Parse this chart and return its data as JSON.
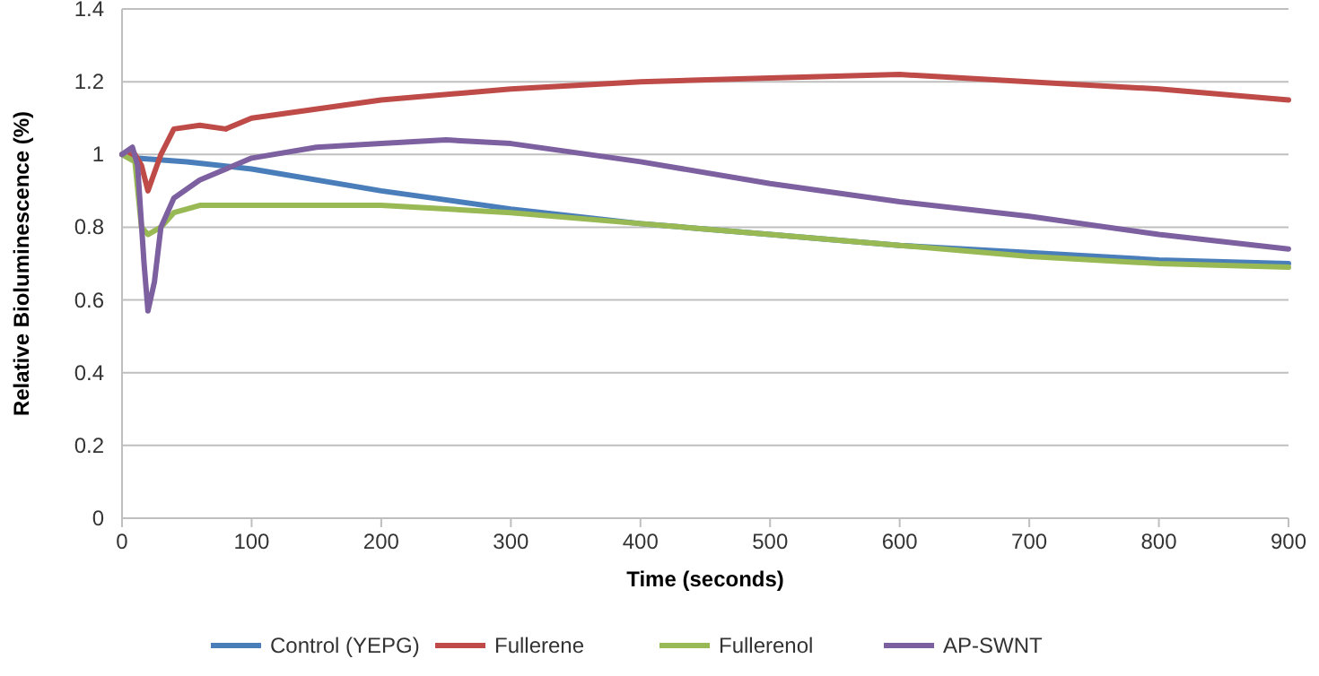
{
  "chart_data": {
    "type": "line",
    "xlabel": "Time (seconds)",
    "ylabel": "Relative Bioluminescence (%)",
    "xlim": [
      0,
      900
    ],
    "xticks": [
      0,
      100,
      200,
      300,
      400,
      500,
      600,
      700,
      800,
      900
    ],
    "ylim": [
      0,
      1.4
    ],
    "yticks": [
      0,
      0.2,
      0.4,
      0.6,
      0.8,
      1,
      1.2,
      1.4
    ],
    "grid": "y",
    "legend": "bottom",
    "marker": "none",
    "line_style": "solid",
    "series": [
      {
        "name": "Control (YEPG)",
        "color": "#4a7ebb",
        "x": [
          0,
          10,
          50,
          100,
          200,
          300,
          400,
          500,
          600,
          700,
          800,
          900
        ],
        "values": [
          1.0,
          0.99,
          0.98,
          0.96,
          0.9,
          0.85,
          0.81,
          0.78,
          0.75,
          0.73,
          0.71,
          0.7
        ]
      },
      {
        "name": "Fullerene",
        "color": "#be4b48",
        "x": [
          0,
          10,
          15,
          20,
          30,
          40,
          60,
          80,
          100,
          200,
          300,
          400,
          500,
          600,
          700,
          800,
          900
        ],
        "values": [
          1.0,
          1.0,
          0.97,
          0.9,
          1.0,
          1.07,
          1.08,
          1.07,
          1.1,
          1.15,
          1.18,
          1.2,
          1.21,
          1.22,
          1.2,
          1.18,
          1.15
        ]
      },
      {
        "name": "Fullerenol",
        "color": "#98b954",
        "x": [
          0,
          10,
          15,
          20,
          30,
          40,
          60,
          100,
          200,
          300,
          400,
          500,
          600,
          700,
          800,
          900
        ],
        "values": [
          1.0,
          0.98,
          0.8,
          0.78,
          0.8,
          0.84,
          0.86,
          0.86,
          0.86,
          0.84,
          0.81,
          0.78,
          0.75,
          0.72,
          0.7,
          0.69
        ]
      },
      {
        "name": "AP-SWNT",
        "color": "#7d60a0",
        "x": [
          0,
          8,
          12,
          17,
          20,
          25,
          30,
          40,
          60,
          100,
          150,
          200,
          250,
          300,
          400,
          500,
          600,
          700,
          800,
          900
        ],
        "values": [
          1.0,
          1.02,
          0.97,
          0.7,
          0.57,
          0.65,
          0.8,
          0.88,
          0.93,
          0.99,
          1.02,
          1.03,
          1.04,
          1.03,
          0.98,
          0.92,
          0.87,
          0.83,
          0.78,
          0.74
        ]
      }
    ]
  }
}
